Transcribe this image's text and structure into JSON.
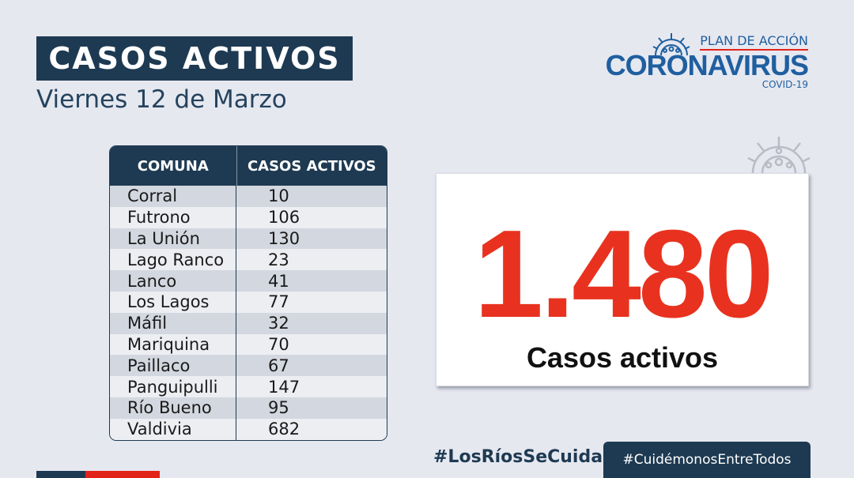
{
  "header": {
    "title": "CASOS ACTIVOS",
    "date": "Viernes 12  de Marzo"
  },
  "brand": {
    "plan": "PLAN DE ACCIÓN",
    "name": "CORONAVIRUS",
    "sub": "COVID-19"
  },
  "table": {
    "headers": [
      "COMUNA",
      "CASOS ACTIVOS"
    ],
    "rows": [
      {
        "comuna": "Corral",
        "casos": "10"
      },
      {
        "comuna": "Futrono",
        "casos": "106"
      },
      {
        "comuna": "La Unión",
        "casos": "130"
      },
      {
        "comuna": "Lago Ranco",
        "casos": "23"
      },
      {
        "comuna": "Lanco",
        "casos": "41"
      },
      {
        "comuna": "Los Lagos",
        "casos": "77"
      },
      {
        "comuna": "Máfil",
        "casos": "32"
      },
      {
        "comuna": "Mariquina",
        "casos": "70"
      },
      {
        "comuna": "Paillaco",
        "casos": "67"
      },
      {
        "comuna": "Panguipulli",
        "casos": "147"
      },
      {
        "comuna": "Río Bueno",
        "casos": "95"
      },
      {
        "comuna": "Valdivia",
        "casos": "682"
      }
    ]
  },
  "total": {
    "value": "1.480",
    "label": "Casos activos"
  },
  "footer": {
    "hashtag1": "#LosRíosSeCuida",
    "hashtag2": "#CuidémonosEntreTodos"
  },
  "colors": {
    "navy": "#1e3a52",
    "red": "#e8321f",
    "brand_blue": "#1f5fa0",
    "background": "#e6e8f0"
  },
  "icons": [
    "virus-icon",
    "virus-watermark-icon"
  ]
}
